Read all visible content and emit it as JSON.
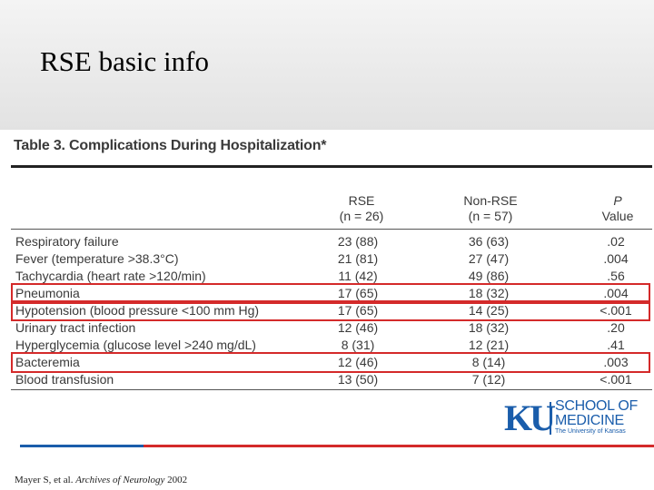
{
  "slide": {
    "title": "RSE basic info"
  },
  "table": {
    "caption": "Table 3. Complications During Hospitalization*",
    "headers": {
      "rse": [
        "RSE",
        "(n = 26)"
      ],
      "non_rse": [
        "Non-RSE",
        "(n = 57)"
      ],
      "p": [
        "P",
        "Value"
      ]
    },
    "rows": [
      {
        "label": "Respiratory failure",
        "rse": "23 (88)",
        "non_rse": "36 (63)",
        "p": ".02",
        "highlight": false
      },
      {
        "label": "Fever (temperature >38.3°C)",
        "rse": "21 (81)",
        "non_rse": "27 (47)",
        "p": ".004",
        "highlight": false
      },
      {
        "label": "Tachycardia (heart rate >120/min)",
        "rse": "11 (42)",
        "non_rse": "49 (86)",
        "p": ".56",
        "highlight": false
      },
      {
        "label": "Pneumonia",
        "rse": "17 (65)",
        "non_rse": "18 (32)",
        "p": ".004",
        "highlight": true
      },
      {
        "label": "Hypotension (blood pressure <100 mm Hg)",
        "rse": "17 (65)",
        "non_rse": "14 (25)",
        "p": "<.001",
        "highlight": true
      },
      {
        "label": "Urinary tract infection",
        "rse": "12 (46)",
        "non_rse": "18 (32)",
        "p": ".20",
        "highlight": false
      },
      {
        "label": "Hyperglycemia (glucose level >240 mg/dL)",
        "rse": "8 (31)",
        "non_rse": "12 (21)",
        "p": ".41",
        "highlight": false
      },
      {
        "label": "Bacteremia",
        "rse": "12 (46)",
        "non_rse": "8 (14)",
        "p": ".003",
        "highlight": true
      },
      {
        "label": "Blood transfusion",
        "rse": "13 (50)",
        "non_rse": "7 (12)",
        "p": "<.001",
        "highlight": false
      }
    ]
  },
  "logo": {
    "mark": "KU",
    "line1": "SCHOOL OF",
    "line2": "MEDICINE",
    "sub": "The University of Kansas",
    "color": "#1a5dab"
  },
  "footer": {
    "citation_authors": "Mayer S, et al. ",
    "citation_journal": "Archives of Neurology",
    "citation_year": " 2002",
    "accent_blue": "#1a5dab",
    "accent_red": "#d42a2a"
  }
}
